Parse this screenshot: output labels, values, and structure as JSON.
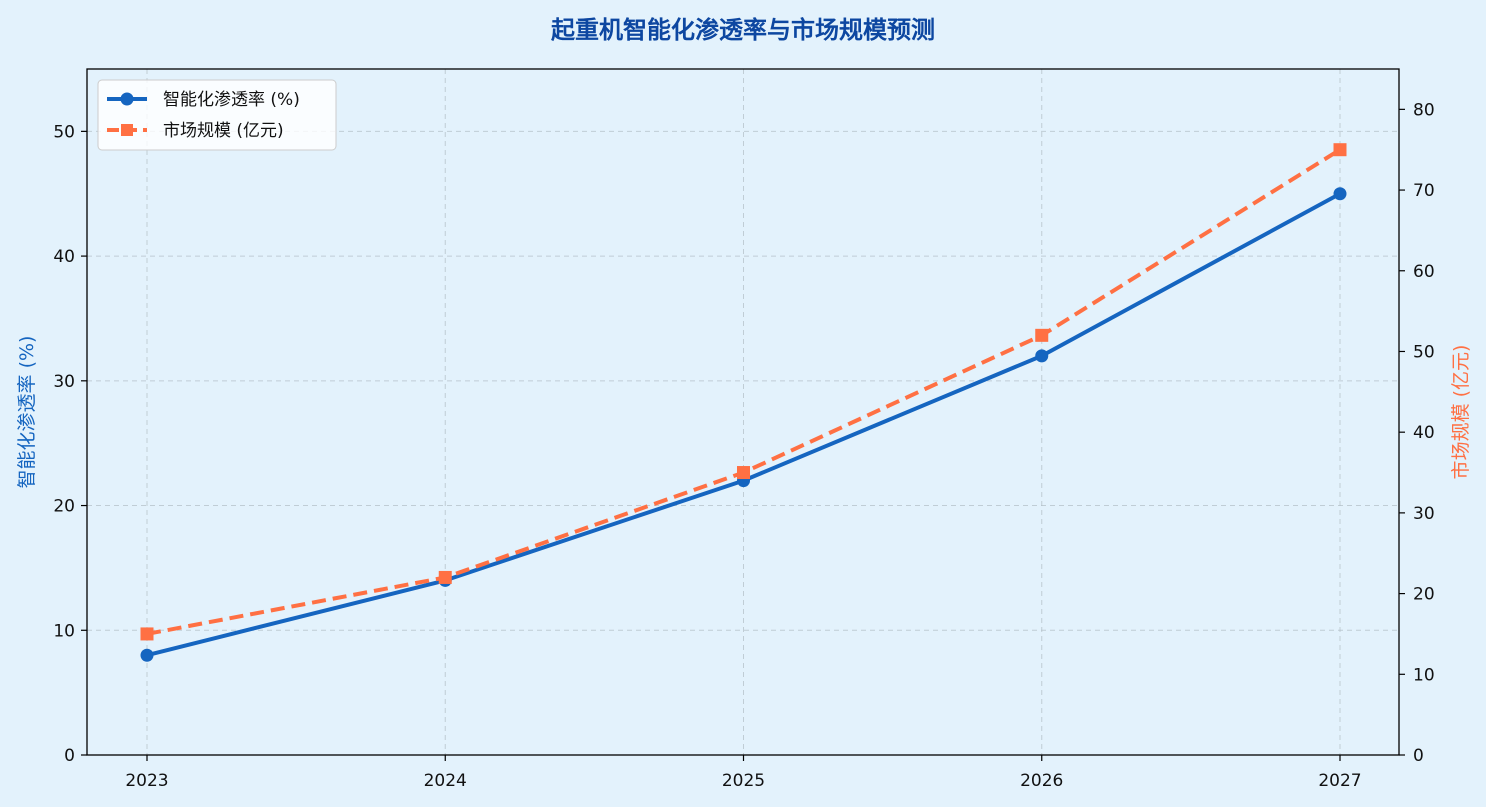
{
  "chart_data": {
    "type": "line",
    "title": "起重机智能化渗透率与市场规模预测",
    "categories": [
      "2023",
      "2024",
      "2025",
      "2026",
      "2027"
    ],
    "y_left": {
      "label": "智能化渗透率 (%)",
      "range": [
        0,
        55
      ],
      "ticks": [
        0,
        10,
        20,
        30,
        40,
        50
      ]
    },
    "y_right": {
      "label": "市场规模 (亿元)",
      "range": [
        0,
        85
      ],
      "ticks": [
        0,
        10,
        20,
        30,
        40,
        50,
        60,
        70,
        80
      ]
    },
    "series": [
      {
        "name": "智能化渗透率 (%)",
        "axis": "left",
        "values": [
          8,
          14,
          22,
          32,
          45
        ],
        "color": "#1565c0",
        "marker": "circle",
        "line_style": "solid"
      },
      {
        "name": "市场规模 (亿元)",
        "axis": "right",
        "values": [
          15,
          22,
          35,
          52,
          75
        ],
        "color": "#ff7043",
        "marker": "square",
        "line_style": "dashed"
      }
    ],
    "grid": true,
    "legend_position": "top-left"
  },
  "colors": {
    "background": "#e3f2fc",
    "title": "#0d47a1",
    "left_axis_label": "#1565c0",
    "right_axis_label": "#ff7043",
    "grid": "#b0bec5"
  }
}
